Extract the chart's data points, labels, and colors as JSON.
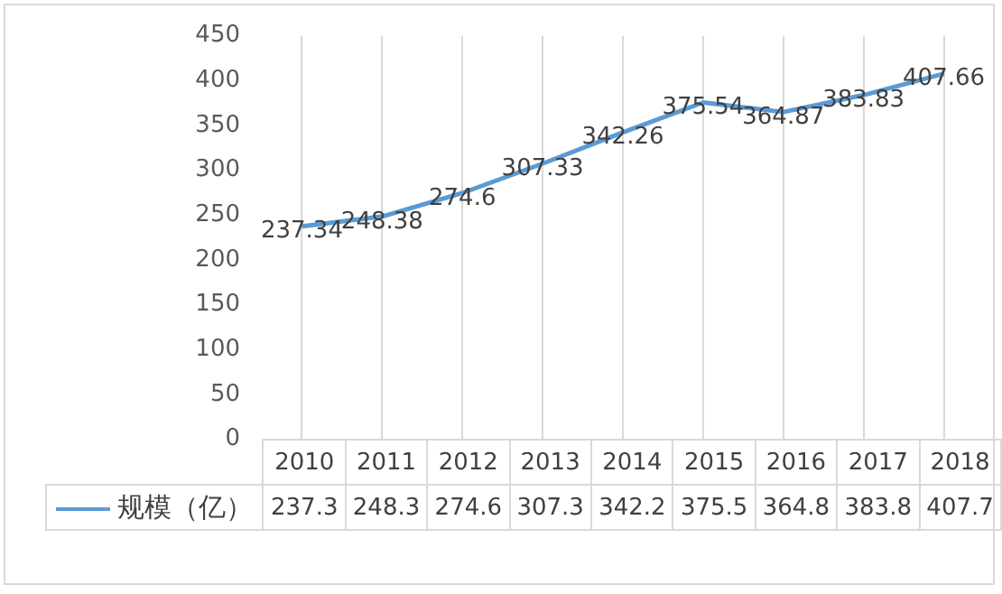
{
  "chart_data": {
    "type": "line",
    "categories": [
      "2010",
      "2011",
      "2012",
      "2013",
      "2014",
      "2015",
      "2016",
      "2017",
      "2018"
    ],
    "series": [
      {
        "name": "规模（亿）",
        "color": "#5b9bd5",
        "values": [
          237.34,
          248.38,
          274.6,
          307.33,
          342.26,
          375.54,
          364.87,
          383.83,
          407.66
        ],
        "value_labels": [
          "237.34",
          "248.38",
          "274.6",
          "307.33",
          "342.26",
          "375.54",
          "364.87",
          "383.83",
          "407.66"
        ]
      }
    ],
    "annotations": [
      "237.3",
      "248.3",
      "274.6",
      "307.3",
      "342.2",
      "375.5",
      "364.8",
      "383.8",
      "407.7"
    ],
    "ylim": [
      0,
      450
    ],
    "yticks": [
      0,
      50,
      100,
      150,
      200,
      250,
      300,
      350,
      400,
      450
    ],
    "grid": "x",
    "marker": "none",
    "line_style": "solid"
  }
}
